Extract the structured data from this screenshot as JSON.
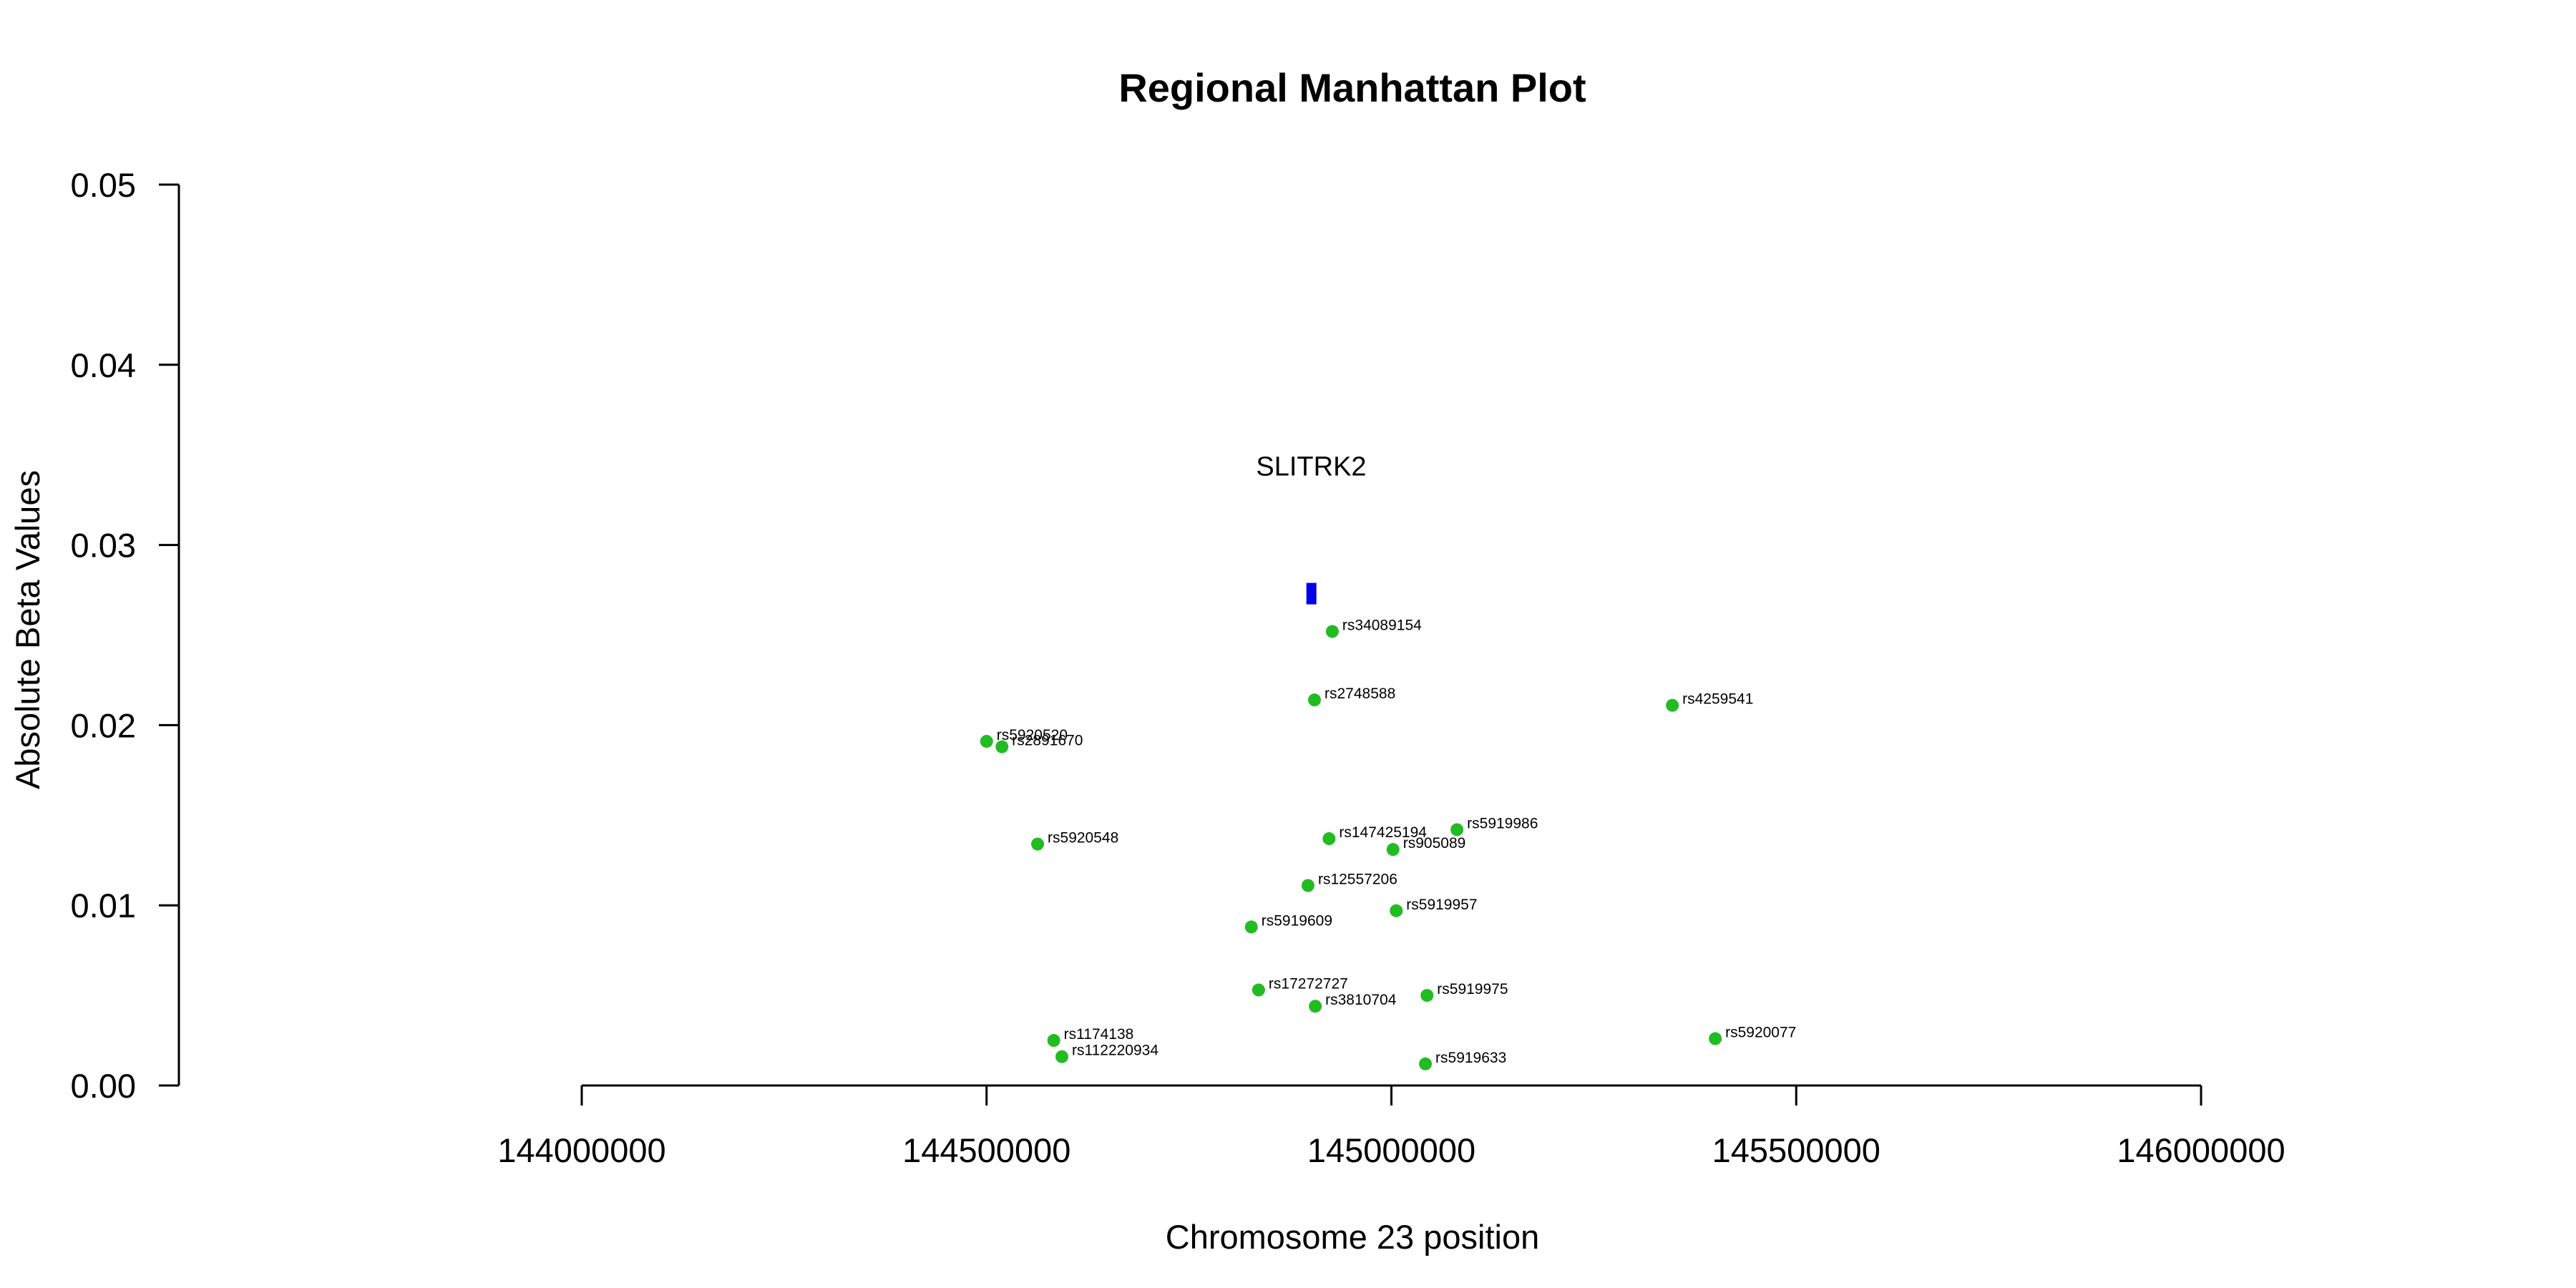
{
  "chart_data": {
    "type": "scatter",
    "title": "Regional Manhattan Plot",
    "xlabel": "Chromosome 23 position",
    "ylabel": "Absolute Beta Values",
    "xlim": [
      144000000,
      146000000
    ],
    "ylim": [
      0,
      0.05
    ],
    "x_ticks": [
      "144000000",
      "144500000",
      "145000000",
      "145500000",
      "146000000"
    ],
    "y_ticks": [
      "0.00",
      "0.01",
      "0.02",
      "0.03",
      "0.04",
      "0.05"
    ],
    "point_color": "#22bb22",
    "gene_color": "#0000ee",
    "gene": {
      "name": "SLITRK2",
      "start": 144895000,
      "end": 144907000,
      "y": 0.0273
    },
    "points": [
      {
        "label": "rs34089154",
        "x": 144927000,
        "y": 0.0252
      },
      {
        "label": "rs2748588",
        "x": 144905000,
        "y": 0.0214
      },
      {
        "label": "rs4259541",
        "x": 145347000,
        "y": 0.0211
      },
      {
        "label": "rs5920520",
        "x": 144500000,
        "y": 0.0191
      },
      {
        "label": "rs2891670",
        "x": 144519000,
        "y": 0.0188
      },
      {
        "label": "rs5920548",
        "x": 144563000,
        "y": 0.0134
      },
      {
        "label": "rs147425194",
        "x": 144923000,
        "y": 0.0137
      },
      {
        "label": "rs5919986",
        "x": 145081000,
        "y": 0.0142
      },
      {
        "label": "rs905089",
        "x": 145002000,
        "y": 0.0131
      },
      {
        "label": "rs12557206",
        "x": 144897000,
        "y": 0.0111
      },
      {
        "label": "rs5919957",
        "x": 145006000,
        "y": 0.0097
      },
      {
        "label": "rs5919609",
        "x": 144827000,
        "y": 0.0088
      },
      {
        "label": "rs17272727",
        "x": 144836000,
        "y": 0.0053
      },
      {
        "label": "rs5919975",
        "x": 145044000,
        "y": 0.005
      },
      {
        "label": "rs3810704",
        "x": 144906000,
        "y": 0.0044
      },
      {
        "label": "rs5920077",
        "x": 145400000,
        "y": 0.0026
      },
      {
        "label": "rs1174138",
        "x": 144583000,
        "y": 0.0025
      },
      {
        "label": "rs112220934",
        "x": 144593000,
        "y": 0.0016
      },
      {
        "label": "rs5919633",
        "x": 145042000,
        "y": 0.0012
      }
    ]
  }
}
